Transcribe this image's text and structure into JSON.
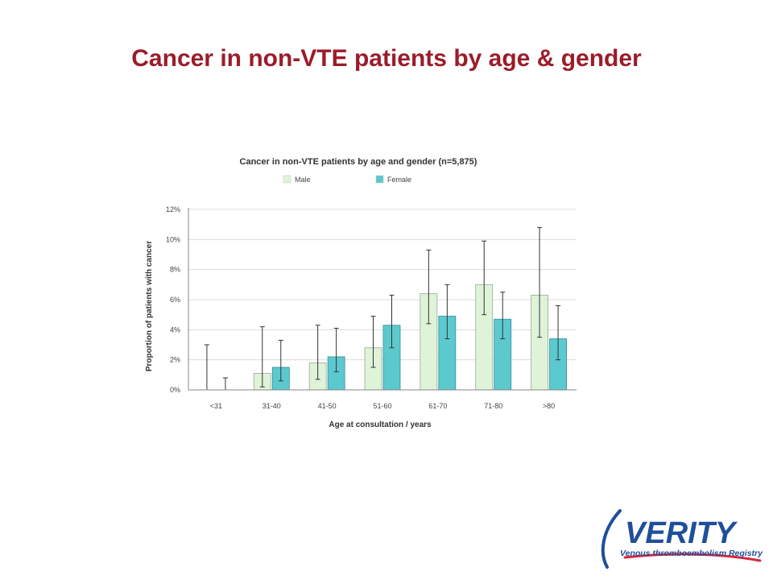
{
  "slide": {
    "title": "Cancer in non-VTE patients by age & gender"
  },
  "chart_data": {
    "type": "bar",
    "title": "Cancer in non-VTE patients by age and gender (n=5,875)",
    "xlabel": "Age at consultation / years",
    "ylabel": "Proportion of patients with cancer",
    "categories": [
      "<31",
      "31-40",
      "41-50",
      "51-60",
      "61-70",
      "71-80",
      ">80"
    ],
    "ylim": [
      0,
      12
    ],
    "yticks": [
      "0%",
      "2%",
      "4%",
      "6%",
      "8%",
      "10%",
      "12%"
    ],
    "grid": true,
    "legend_position": "top",
    "series": [
      {
        "name": "Male",
        "color": "#dff3d8",
        "values": [
          0,
          1.1,
          1.8,
          2.8,
          6.4,
          7.0,
          6.3
        ],
        "err_low": [
          0,
          0.2,
          0.7,
          1.5,
          4.4,
          5.0,
          3.5
        ],
        "err_high": [
          3.0,
          4.2,
          4.3,
          4.9,
          9.3,
          9.9,
          10.8
        ]
      },
      {
        "name": "Female",
        "color": "#5cc9cf",
        "values": [
          0,
          1.5,
          2.2,
          4.3,
          4.9,
          4.7,
          3.4
        ],
        "err_low": [
          0,
          0.6,
          1.2,
          2.8,
          3.4,
          3.4,
          2.0
        ],
        "err_high": [
          0.8,
          3.3,
          4.1,
          6.3,
          7.0,
          6.5,
          5.6
        ]
      }
    ]
  },
  "logo": {
    "name": "VERITY",
    "tagline": "Venous thromboembolism Registry",
    "primary_color": "#1f4f9c",
    "accent_color": "#d7263d"
  }
}
